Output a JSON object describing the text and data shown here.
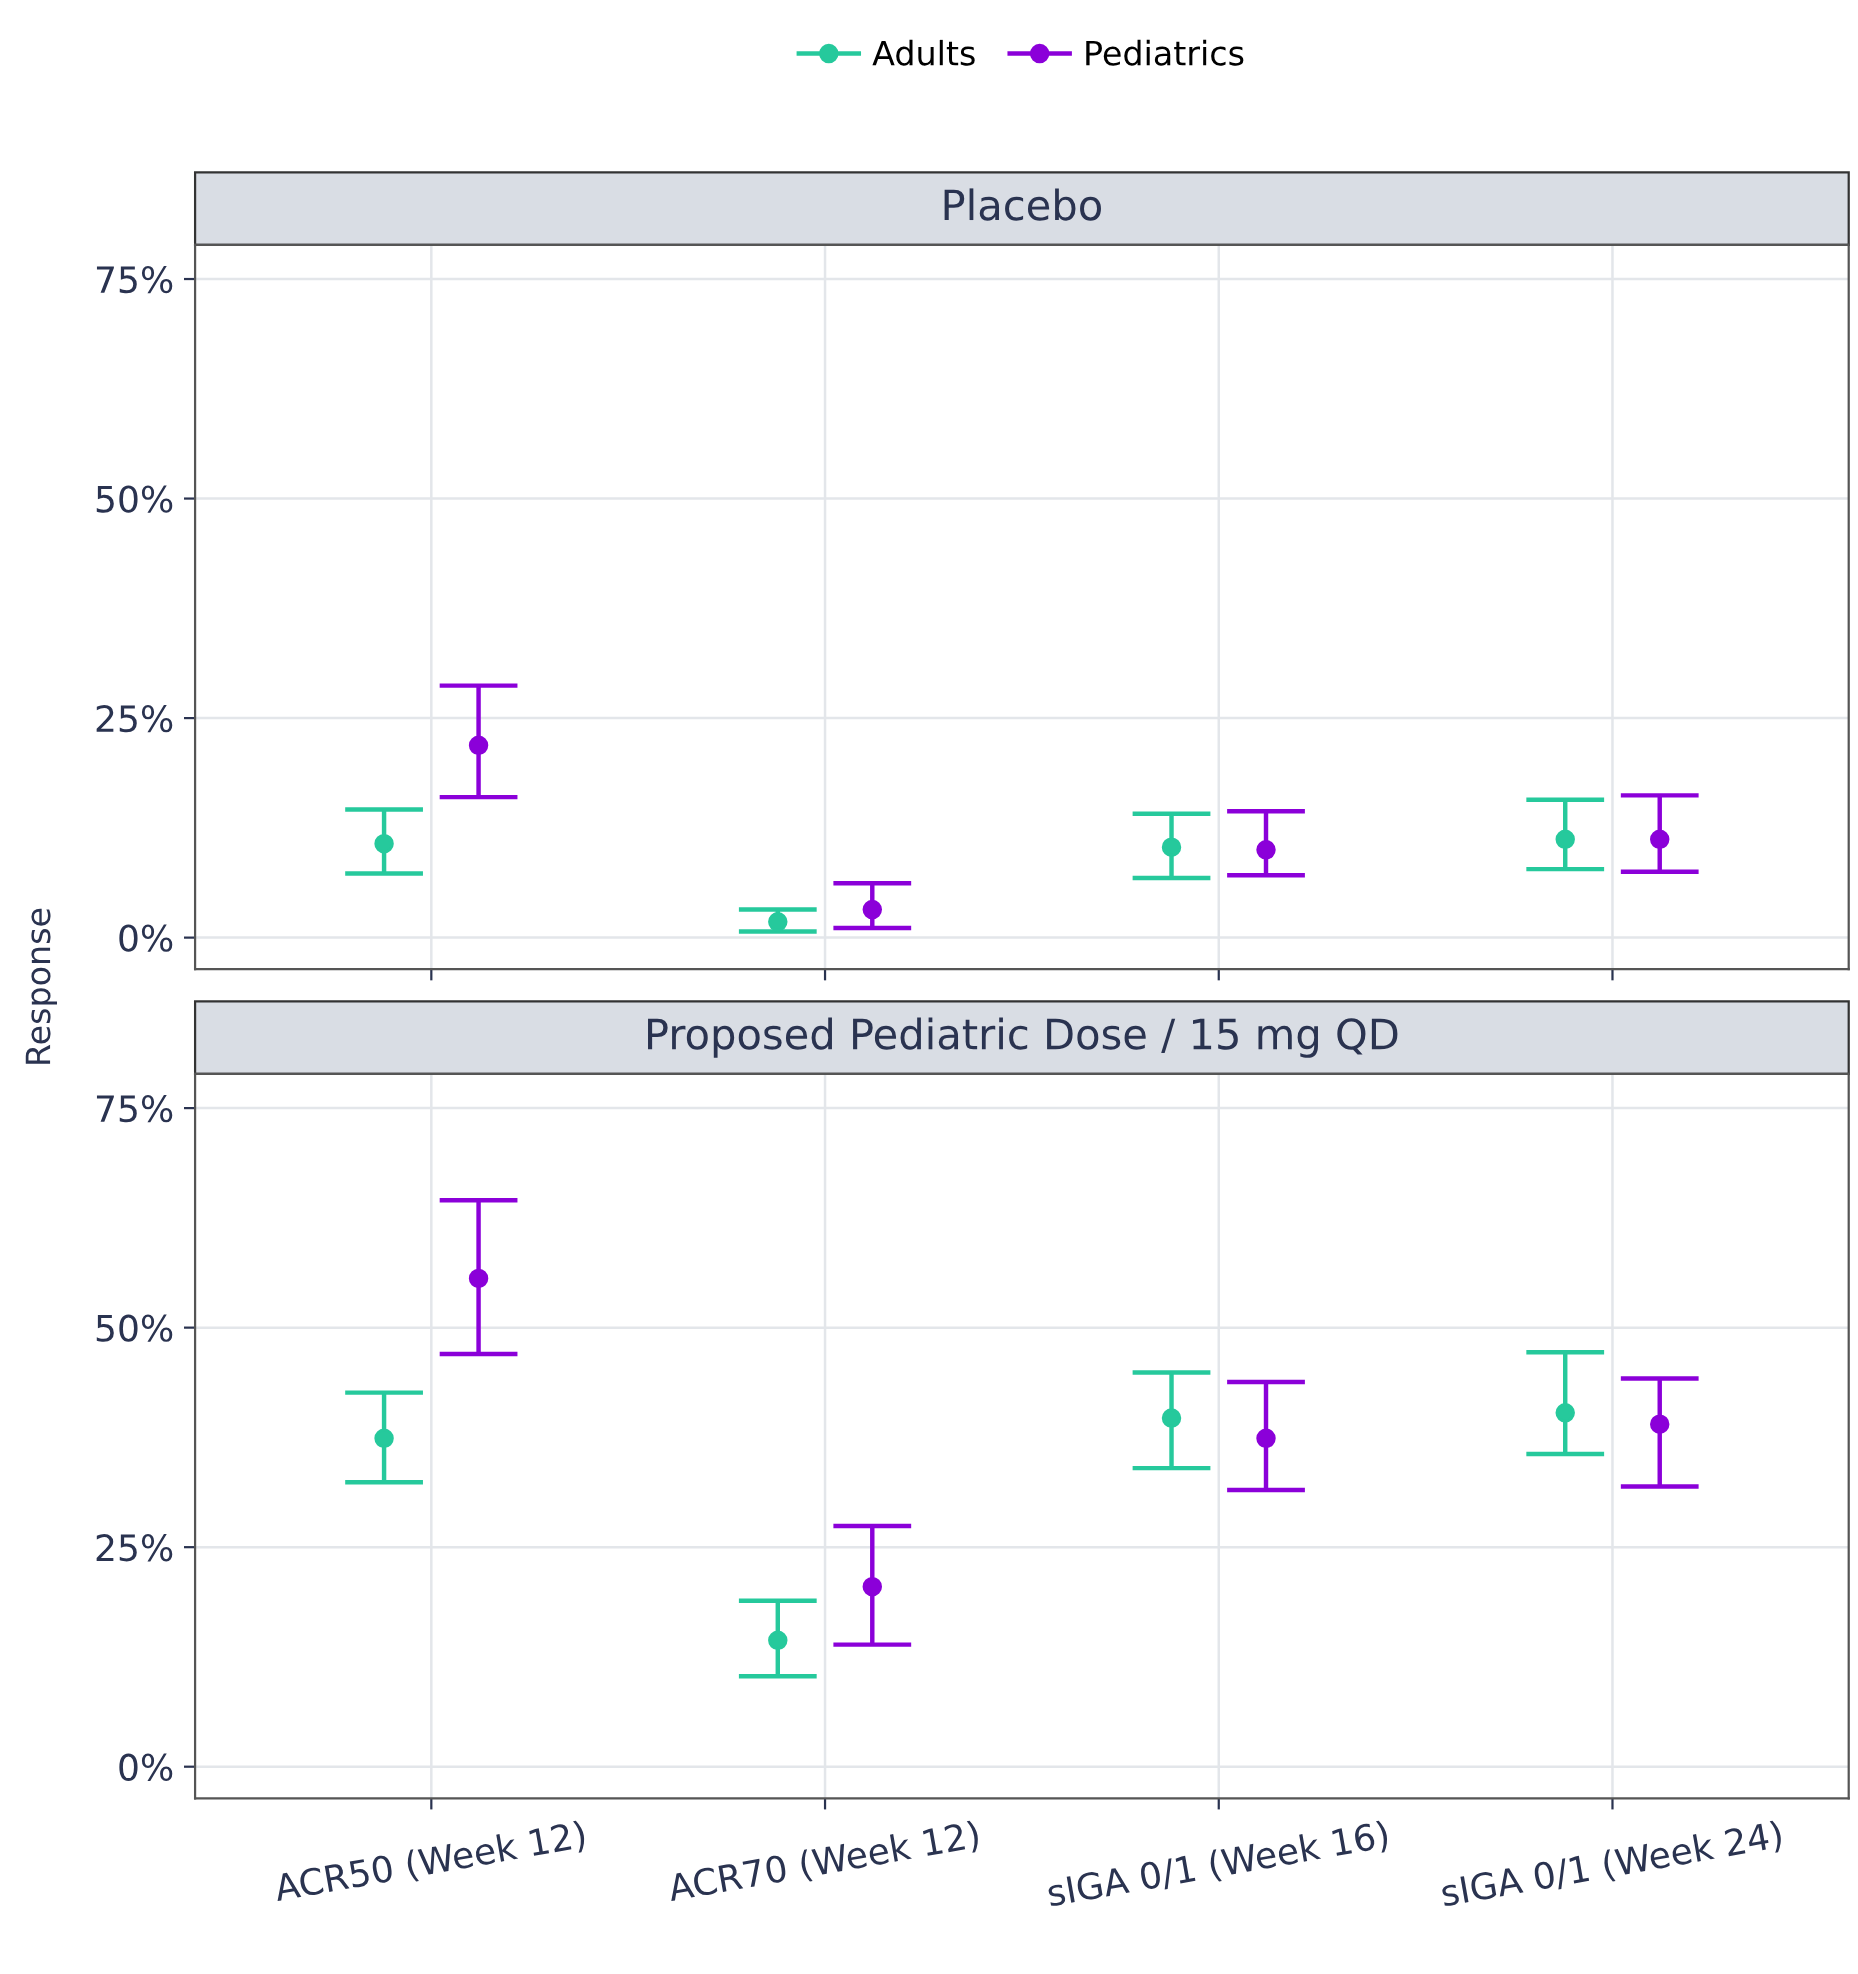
{
  "chart_data": [
    {
      "type": "scatter",
      "title": "Placebo",
      "ylabel": "Response",
      "categories": [
        null,
        null,
        null,
        null
      ],
      "series": [
        {
          "name": "Adults",
          "color": "#26c99c",
          "values": [
            10.7,
            1.8,
            10.3,
            11.2
          ],
          "errors": [
            [
              7.3,
              14.6
            ],
            [
              0.7,
              3.2
            ],
            [
              6.8,
              14.1
            ],
            [
              7.8,
              15.7
            ]
          ]
        },
        {
          "name": "Pediatrics",
          "color": "#8b00d9",
          "values": [
            21.9,
            3.2,
            10.0,
            11.2
          ],
          "errors": [
            [
              16.0,
              28.7
            ],
            [
              1.1,
              6.2
            ],
            [
              7.1,
              14.4
            ],
            [
              7.5,
              16.2
            ]
          ]
        }
      ],
      "ylim": [
        -3.6,
        78.9
      ],
      "yticks": [
        {
          "value": 0,
          "label": "0%"
        },
        {
          "value": 25,
          "label": "25%"
        },
        {
          "value": 50,
          "label": "50%"
        },
        {
          "value": 75,
          "label": "75%"
        }
      ],
      "grid": true,
      "legend": "top",
      "marker": "circle",
      "tick_labels": "y"
    },
    {
      "type": "scatter",
      "title": "Proposed Pediatric Dose / 15 mg QD",
      "categories": [
        "ACR50 (Week 12)",
        "ACR70 (Week 12)",
        "sIGA 0/1 (Week 16)",
        "sIGA 0/1 (Week 24)"
      ],
      "series": [
        {
          "color": "#26c99c",
          "values": [
            37.4,
            14.4,
            39.7,
            40.3
          ],
          "errors": [
            [
              32.4,
              42.6
            ],
            [
              10.3,
              18.9
            ],
            [
              34.0,
              44.9
            ],
            [
              35.6,
              47.2
            ]
          ]
        },
        {
          "color": "#8b00d9",
          "values": [
            55.6,
            20.5,
            37.4,
            39.0
          ],
          "errors": [
            [
              47.0,
              64.5
            ],
            [
              13.9,
              27.4
            ],
            [
              31.5,
              43.8
            ],
            [
              31.9,
              44.2
            ]
          ]
        }
      ],
      "ylim": [
        -3.6,
        78.9
      ],
      "yticks": [
        {
          "value": 0,
          "label": "0%"
        },
        {
          "value": 25,
          "label": "25%"
        },
        {
          "value": 50,
          "label": "50%"
        },
        {
          "value": 75,
          "label": "75%"
        }
      ],
      "grid": true,
      "marker": "circle"
    }
  ]
}
